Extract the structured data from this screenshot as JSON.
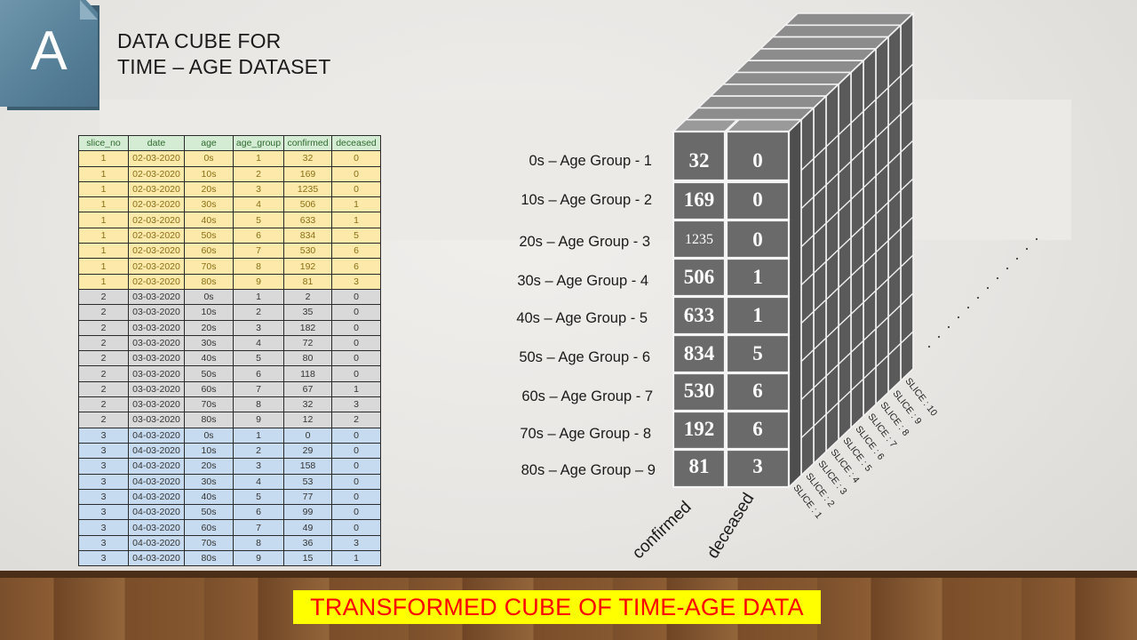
{
  "badge": {
    "letter": "A"
  },
  "title": {
    "line1": "DATA CUBE FOR",
    "line2": "TIME – AGE DATASET"
  },
  "table": {
    "headers": [
      "slice_no",
      "date",
      "age",
      "age_group",
      "confirmed",
      "deceased"
    ],
    "rows": [
      [
        "1",
        "02-03-2020",
        "0s",
        "1",
        "32",
        "0"
      ],
      [
        "1",
        "02-03-2020",
        "10s",
        "2",
        "169",
        "0"
      ],
      [
        "1",
        "02-03-2020",
        "20s",
        "3",
        "1235",
        "0"
      ],
      [
        "1",
        "02-03-2020",
        "30s",
        "4",
        "506",
        "1"
      ],
      [
        "1",
        "02-03-2020",
        "40s",
        "5",
        "633",
        "1"
      ],
      [
        "1",
        "02-03-2020",
        "50s",
        "6",
        "834",
        "5"
      ],
      [
        "1",
        "02-03-2020",
        "60s",
        "7",
        "530",
        "6"
      ],
      [
        "1",
        "02-03-2020",
        "70s",
        "8",
        "192",
        "6"
      ],
      [
        "1",
        "02-03-2020",
        "80s",
        "9",
        "81",
        "3"
      ],
      [
        "2",
        "03-03-2020",
        "0s",
        "1",
        "2",
        "0"
      ],
      [
        "2",
        "03-03-2020",
        "10s",
        "2",
        "35",
        "0"
      ],
      [
        "2",
        "03-03-2020",
        "20s",
        "3",
        "182",
        "0"
      ],
      [
        "2",
        "03-03-2020",
        "30s",
        "4",
        "72",
        "0"
      ],
      [
        "2",
        "03-03-2020",
        "40s",
        "5",
        "80",
        "0"
      ],
      [
        "2",
        "03-03-2020",
        "50s",
        "6",
        "118",
        "0"
      ],
      [
        "2",
        "03-03-2020",
        "60s",
        "7",
        "67",
        "1"
      ],
      [
        "2",
        "03-03-2020",
        "70s",
        "8",
        "32",
        "3"
      ],
      [
        "2",
        "03-03-2020",
        "80s",
        "9",
        "12",
        "2"
      ],
      [
        "3",
        "04-03-2020",
        "0s",
        "1",
        "0",
        "0"
      ],
      [
        "3",
        "04-03-2020",
        "10s",
        "2",
        "29",
        "0"
      ],
      [
        "3",
        "04-03-2020",
        "20s",
        "3",
        "158",
        "0"
      ],
      [
        "3",
        "04-03-2020",
        "30s",
        "4",
        "53",
        "0"
      ],
      [
        "3",
        "04-03-2020",
        "40s",
        "5",
        "77",
        "0"
      ],
      [
        "3",
        "04-03-2020",
        "50s",
        "6",
        "99",
        "0"
      ],
      [
        "3",
        "04-03-2020",
        "60s",
        "7",
        "49",
        "0"
      ],
      [
        "3",
        "04-03-2020",
        "70s",
        "8",
        "36",
        "3"
      ],
      [
        "3",
        "04-03-2020",
        "80s",
        "9",
        "15",
        "1"
      ]
    ]
  },
  "cube": {
    "row_labels": [
      "0s – Age Group - 1",
      "10s – Age Group - 2",
      "20s – Age Group - 3",
      "30s – Age Group - 4",
      "40s – Age Group - 5",
      "50s – Age Group - 6",
      "60s – Age Group - 7",
      "70s – Age Group - 8",
      "80s – Age Group – 9"
    ],
    "confirmed": [
      "32",
      "169",
      "1235",
      "506",
      "633",
      "834",
      "530",
      "192",
      "81"
    ],
    "deceased": [
      "0",
      "0",
      "0",
      "1",
      "1",
      "5",
      "6",
      "6",
      "3"
    ],
    "col_labels": [
      "confirmed",
      "deceased"
    ],
    "slice_labels": [
      "SLICE : 1",
      "SLICE : 2",
      "SLICE : 3",
      "SLICE : 4",
      "SLICE : 5",
      "SLICE : 6",
      "SLICE : 7",
      "SLICE : 8",
      "SLICE : 9",
      "SLICE : 10"
    ]
  },
  "banner": {
    "text": "TRANSFORMED CUBE OF TIME-AGE DATA"
  },
  "colors": {
    "slice1": "#fde9a9",
    "slice2": "#d9d9d9",
    "slice3": "#c6dbef",
    "header": "#d4ecd4",
    "banner_bg": "#ffff00",
    "banner_text": "#ff0000"
  }
}
